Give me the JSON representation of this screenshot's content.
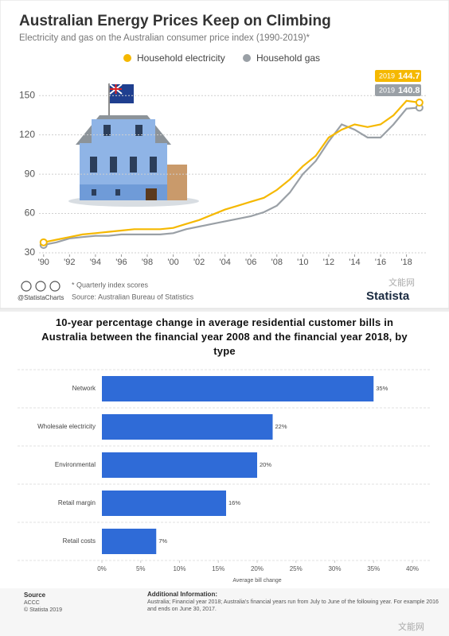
{
  "chart_data": [
    {
      "type": "line",
      "title": "Australian Energy Prices Keep on Climbing",
      "subtitle": "Electricity and gas on the Australian consumer price index (1990-2019)*",
      "x": [
        1990,
        1991,
        1992,
        1993,
        1994,
        1995,
        1996,
        1997,
        1998,
        1999,
        2000,
        2001,
        2002,
        2003,
        2004,
        2005,
        2006,
        2007,
        2008,
        2009,
        2010,
        2011,
        2012,
        2013,
        2014,
        2015,
        2016,
        2017,
        2018,
        2019
      ],
      "series": [
        {
          "name": "Household electricity",
          "color": "#f5b800",
          "values": [
            38,
            40,
            42,
            44,
            45,
            46,
            47,
            48,
            48,
            48,
            49,
            52,
            55,
            59,
            63,
            66,
            69,
            72,
            78,
            86,
            96,
            104,
            118,
            124,
            128,
            126,
            128,
            135,
            146,
            144.7
          ]
        },
        {
          "name": "Household gas",
          "color": "#9aa0a6",
          "values": [
            36,
            38,
            41,
            42,
            43,
            43,
            44,
            44,
            44,
            44,
            45,
            48,
            50,
            52,
            54,
            56,
            58,
            61,
            66,
            76,
            90,
            100,
            115,
            128,
            124,
            118,
            118,
            128,
            140,
            140.8
          ]
        }
      ],
      "xlim": [
        1989.4,
        2019.5
      ],
      "xticks": [
        {
          "value": 1990,
          "label": "'90"
        },
        {
          "value": 1992,
          "label": "'92"
        },
        {
          "value": 1994,
          "label": "'94"
        },
        {
          "value": 1996,
          "label": "'96"
        },
        {
          "value": 1998,
          "label": "'98"
        },
        {
          "value": 2000,
          "label": "'00"
        },
        {
          "value": 2002,
          "label": "'02"
        },
        {
          "value": 2004,
          "label": "'04"
        },
        {
          "value": 2006,
          "label": "'06"
        },
        {
          "value": 2008,
          "label": "'08"
        },
        {
          "value": 2010,
          "label": "'10"
        },
        {
          "value": 2012,
          "label": "'12"
        },
        {
          "value": 2014,
          "label": "'14"
        },
        {
          "value": 2016,
          "label": "'16"
        },
        {
          "value": 2018,
          "label": "'18"
        }
      ],
      "ylim": [
        30,
        155
      ],
      "yticks": [
        30,
        60,
        90,
        120,
        150
      ],
      "grid": true,
      "notes": "* Quarterly index scores",
      "source": "Source: Australian Bureau of Statistics",
      "credit": "@StatistaCharts",
      "brand": "Statista",
      "watermark": "文能网"
    },
    {
      "type": "bar",
      "orientation": "horizontal",
      "title": "10-year percentage change in average residential customer bills in Australia between the financial year 2008 and the financial year 2018, by type",
      "categories": [
        "Network",
        "Wholesale electricity",
        "Environmental",
        "Retail margin",
        "Retail costs"
      ],
      "values": [
        35,
        22,
        20,
        16,
        7
      ],
      "value_labels": [
        "35%",
        "22%",
        "20%",
        "16%",
        "7%"
      ],
      "color": "#2f6bd7",
      "xlim": [
        0,
        40
      ],
      "xticks": [
        {
          "value": 0,
          "label": "0%"
        },
        {
          "value": 5,
          "label": "5%"
        },
        {
          "value": 10,
          "label": "10%"
        },
        {
          "value": 15,
          "label": "15%"
        },
        {
          "value": 20,
          "label": "20%"
        },
        {
          "value": 25,
          "label": "25%"
        },
        {
          "value": 30,
          "label": "30%"
        },
        {
          "value": 35,
          "label": "35%"
        },
        {
          "value": 40,
          "label": "40%"
        }
      ],
      "xlabel": "Average bill change",
      "source_title": "Source",
      "source": "ACCC",
      "credit": "© Statista 2019",
      "info_title": "Additional Information:",
      "info": "Australia; Financial year 2018; Australia's financial years run from July to June of the following year. For example 2016 and ends on June 30, 2017.",
      "watermark": "文能网"
    }
  ]
}
